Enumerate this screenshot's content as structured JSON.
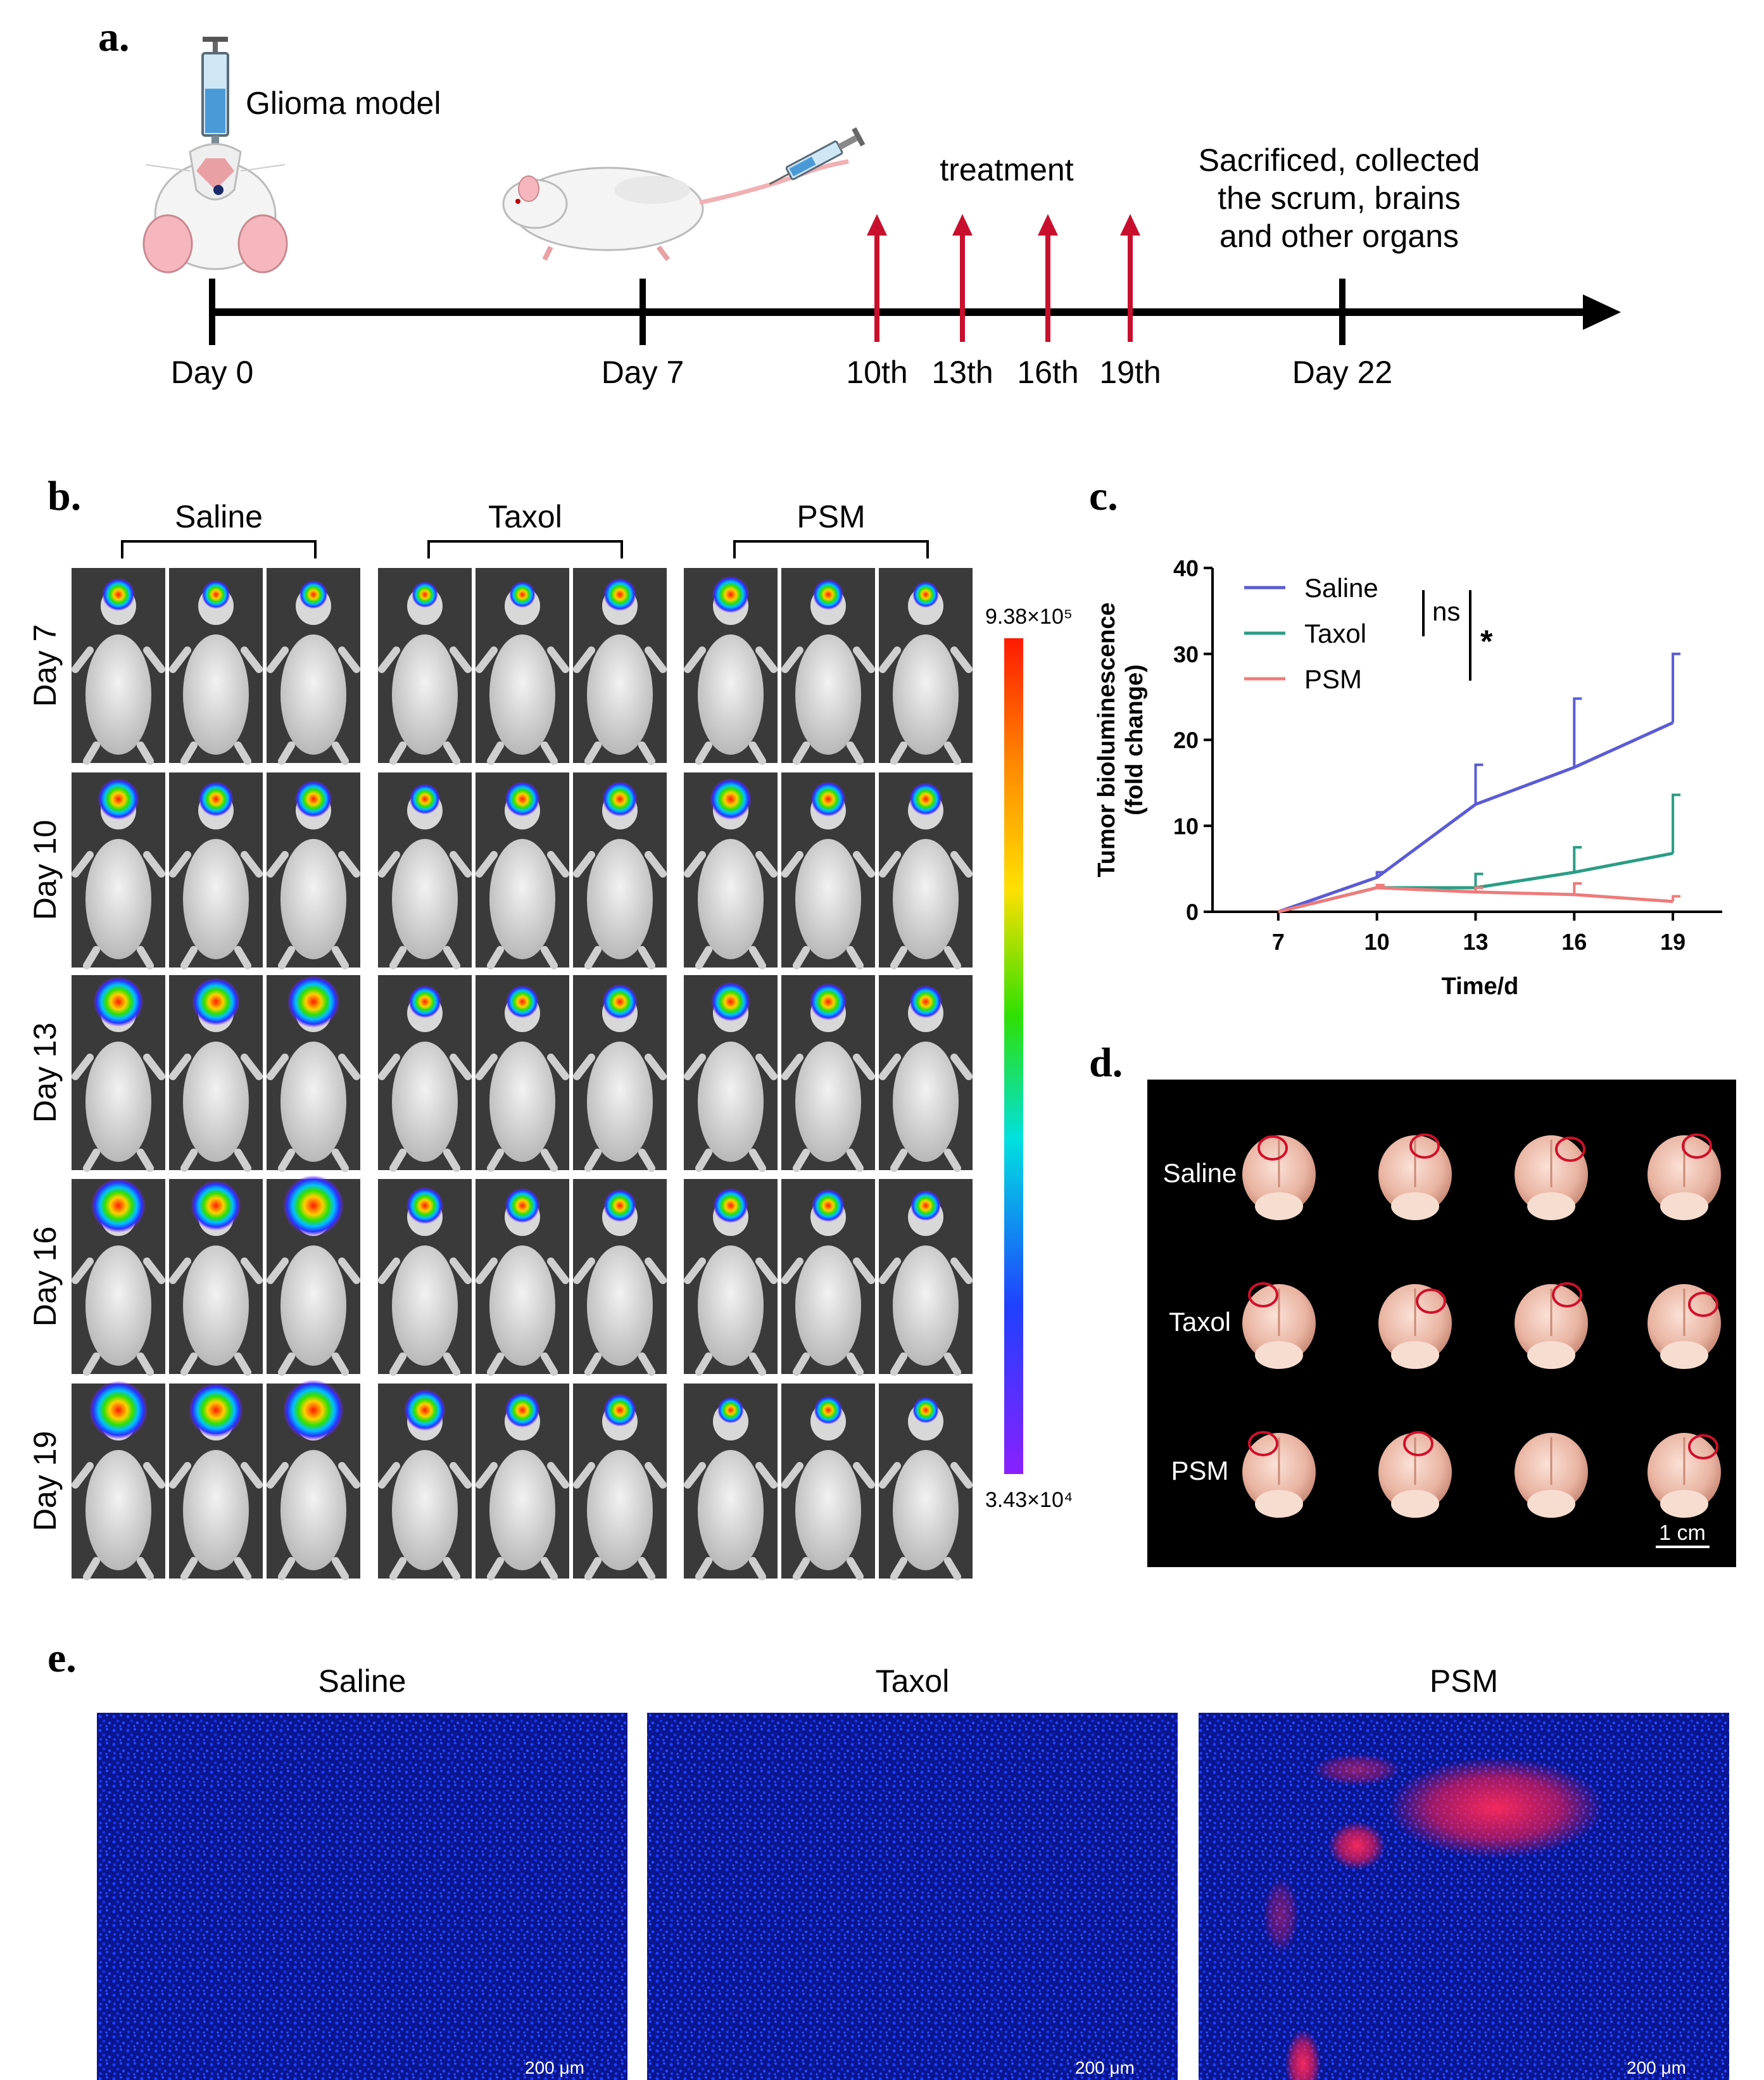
{
  "panel_a": {
    "label": "a.",
    "glioma_text": "Glioma model",
    "treatment_text": "treatment",
    "sacrifice_lines": [
      "Sacrificed, collected",
      "the scrum, brains",
      "and other organs"
    ],
    "timeline_labels": [
      "Day 0",
      "Day 7",
      "10th",
      "13th",
      "16th",
      "19th",
      "Day 22"
    ],
    "arrow_color": "#c8102e",
    "icons": [
      "syringe-icon",
      "mouse-top-view-icon",
      "mouse-side-view-icon"
    ]
  },
  "panel_b": {
    "label": "b.",
    "groups": [
      "Saline",
      "Taxol",
      "PSM"
    ],
    "rows": [
      "Day 7",
      "Day 10",
      "Day 13",
      "Day 16",
      "Day 19"
    ],
    "scale_max": "9.38×10⁵",
    "scale_min": "3.43×10⁴",
    "signal_levels": [
      [
        [
          0.35,
          0.25,
          0.25
        ],
        [
          0.2,
          0.2,
          0.35
        ],
        [
          0.45,
          0.3,
          0.2
        ]
      ],
      [
        [
          0.55,
          0.4,
          0.45
        ],
        [
          0.3,
          0.4,
          0.4
        ],
        [
          0.55,
          0.4,
          0.35
        ]
      ],
      [
        [
          0.75,
          0.7,
          0.8
        ],
        [
          0.35,
          0.35,
          0.4
        ],
        [
          0.5,
          0.45,
          0.35
        ]
      ],
      [
        [
          0.85,
          0.75,
          1.0
        ],
        [
          0.45,
          0.4,
          0.35
        ],
        [
          0.4,
          0.35,
          0.3
        ]
      ],
      [
        [
          0.95,
          0.85,
          1.0
        ],
        [
          0.55,
          0.4,
          0.35
        ],
        [
          0.2,
          0.25,
          0.2
        ]
      ]
    ]
  },
  "panel_c": {
    "label": "c.",
    "chart_data": {
      "type": "line",
      "x": [
        7,
        10,
        13,
        16,
        19
      ],
      "series": [
        {
          "name": "Saline",
          "color": "#5b5bd6",
          "values": [
            0,
            4,
            12.5,
            16.8,
            22
          ],
          "err": [
            0,
            0.6,
            4.6,
            8,
            8
          ]
        },
        {
          "name": "Taxol",
          "color": "#2a9d84",
          "values": [
            0,
            2.8,
            2.8,
            4.6,
            6.8
          ],
          "err": [
            0,
            0.3,
            1.6,
            2.9,
            6.8
          ]
        },
        {
          "name": "PSM",
          "color": "#f07a7a",
          "values": [
            0,
            2.8,
            2.3,
            2.0,
            1.2
          ],
          "err": [
            0,
            0.3,
            0.5,
            1.3,
            0.6
          ]
        }
      ],
      "ylabel_lines": [
        "Tumor bioluminescence",
        "(fold change)"
      ],
      "xlabel": "Time/d",
      "ylim": [
        0,
        40
      ],
      "yticks": [
        0,
        10,
        20,
        30,
        40
      ],
      "annotations": [
        "ns",
        "*"
      ]
    }
  },
  "panel_d": {
    "label": "d.",
    "rows": [
      "Saline",
      "Taxol",
      "PSM"
    ],
    "scale_bar": "1 cm"
  },
  "panel_e": {
    "label": "e.",
    "titles": [
      "Saline",
      "Taxol",
      "PSM"
    ],
    "scale_bar": "200 μm"
  }
}
